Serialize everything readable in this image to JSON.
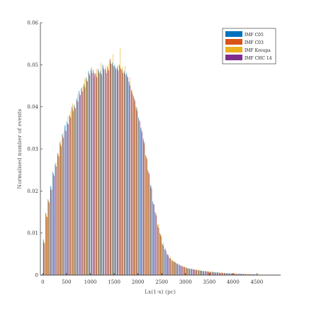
{
  "chart_data": {
    "type": "bar",
    "title": "",
    "xlabel": "Lx(1-x) (pc)",
    "ylabel": "Normalised number of events",
    "xlim": [
      -50,
      5000
    ],
    "ylim": [
      0,
      0.06
    ],
    "x_ticks": [
      0,
      500,
      1000,
      1500,
      2000,
      2500,
      3000,
      3500,
      4000,
      4500
    ],
    "y_ticks": [
      0,
      0.01,
      0.02,
      0.03,
      0.04,
      0.05,
      0.06
    ],
    "x_tick_labels": [
      "0",
      "500",
      "1000",
      "1500",
      "2000",
      "2500",
      "3000",
      "3500",
      "4000",
      "4500"
    ],
    "y_tick_labels": [
      "0",
      "0.01",
      "0.02",
      "0.03",
      "0.04",
      "0.05",
      "0.06"
    ],
    "legend_position": "top-right",
    "bin_width": 50,
    "x": [
      25,
      75,
      125,
      175,
      225,
      275,
      325,
      375,
      425,
      475,
      525,
      575,
      625,
      675,
      725,
      775,
      825,
      875,
      925,
      975,
      1025,
      1075,
      1125,
      1175,
      1225,
      1275,
      1325,
      1375,
      1425,
      1475,
      1525,
      1575,
      1625,
      1675,
      1725,
      1775,
      1825,
      1875,
      1925,
      1975,
      2025,
      2075,
      2125,
      2175,
      2225,
      2275,
      2325,
      2375,
      2425,
      2475,
      2525,
      2575,
      2625,
      2675,
      2725,
      2775,
      2825,
      2875,
      2925,
      2975,
      3025,
      3075,
      3125,
      3175,
      3225,
      3275,
      3325,
      3375,
      3425,
      3475,
      3525,
      3575,
      3625,
      3675,
      3725,
      3775,
      3825,
      3875,
      3925,
      3975,
      4025,
      4075,
      4125,
      4175,
      4225,
      4275,
      4325,
      4375,
      4425,
      4475,
      4525,
      4575,
      4625,
      4675,
      4725,
      4775,
      4825,
      4875,
      4925,
      4975
    ],
    "series": [
      {
        "name": "IMF C05",
        "color": "#0072bd",
        "values": [
          0.0085,
          0.0148,
          0.018,
          0.0212,
          0.0245,
          0.0265,
          0.029,
          0.0315,
          0.0335,
          0.0355,
          0.0365,
          0.038,
          0.04,
          0.0405,
          0.042,
          0.0438,
          0.0445,
          0.0455,
          0.047,
          0.0485,
          0.049,
          0.0488,
          0.048,
          0.049,
          0.0485,
          0.05,
          0.049,
          0.0495,
          0.051,
          0.0505,
          0.05,
          0.0495,
          0.05,
          0.049,
          0.0485,
          0.048,
          0.046,
          0.044,
          0.0425,
          0.04,
          0.0375,
          0.035,
          0.0325,
          0.0285,
          0.025,
          0.0215,
          0.0175,
          0.015,
          0.012,
          0.01,
          0.0075,
          0.0062,
          0.005,
          0.0042,
          0.0035,
          0.0032,
          0.0028,
          0.0025,
          0.0022,
          0.002,
          0.0018,
          0.0016,
          0.0015,
          0.0014,
          0.0013,
          0.0012,
          0.0011,
          0.001,
          0.001,
          0.0009,
          0.0008,
          0.0008,
          0.0007,
          0.0007,
          0.0006,
          0.0006,
          0.0005,
          0.0005,
          0.0005,
          0.0004,
          0.0004,
          0.0004,
          0.0003,
          0.0003,
          0.0003,
          0.0003,
          0.0002,
          0.0002,
          0.0002,
          0.0002,
          0.0002,
          0.0001,
          0.0001,
          0.0001,
          0.0001,
          0.0001,
          0.0001,
          0.0001,
          0.0001,
          0.0001
        ]
      },
      {
        "name": "IMF C03",
        "color": "#d95319",
        "values": [
          0.0078,
          0.014,
          0.0175,
          0.0205,
          0.024,
          0.026,
          0.0285,
          0.031,
          0.033,
          0.0345,
          0.036,
          0.0378,
          0.0395,
          0.04,
          0.0415,
          0.0432,
          0.044,
          0.045,
          0.0465,
          0.048,
          0.0485,
          0.0482,
          0.0475,
          0.0485,
          0.048,
          0.0495,
          0.0485,
          0.049,
          0.0515,
          0.05,
          0.0495,
          0.049,
          0.0495,
          0.0485,
          0.048,
          0.0475,
          0.0455,
          0.0435,
          0.042,
          0.0395,
          0.037,
          0.0345,
          0.032,
          0.028,
          0.0245,
          0.021,
          0.017,
          0.0145,
          0.0115,
          0.0095,
          0.0072,
          0.006,
          0.0048,
          0.004,
          0.0034,
          0.0031,
          0.0027,
          0.0024,
          0.0021,
          0.0019,
          0.0017,
          0.0015,
          0.0014,
          0.0013,
          0.0012,
          0.0011,
          0.001,
          0.0009,
          0.0009,
          0.0008,
          0.0007,
          0.0007,
          0.0006,
          0.0006,
          0.0005,
          0.0005,
          0.0005,
          0.0004,
          0.0004,
          0.0004,
          0.0003,
          0.0003,
          0.0003,
          0.0003,
          0.0002,
          0.0002,
          0.0002,
          0.0002,
          0.0002,
          0.0001,
          0.0001,
          0.0001,
          0.0001,
          0.0001,
          0.0001,
          0.0001,
          0.0001,
          0.0001,
          0.0001,
          0.0001
        ]
      },
      {
        "name": "IMF Kroupa",
        "color": "#edb120",
        "values": [
          0.008,
          0.0145,
          0.0178,
          0.021,
          0.0242,
          0.0268,
          0.0288,
          0.032,
          0.034,
          0.0358,
          0.0378,
          0.039,
          0.0408,
          0.0398,
          0.043,
          0.0425,
          0.0448,
          0.0468,
          0.0462,
          0.0478,
          0.0495,
          0.047,
          0.049,
          0.0482,
          0.0505,
          0.0488,
          0.0498,
          0.0502,
          0.0505,
          0.0525,
          0.049,
          0.05,
          0.054,
          0.0495,
          0.0498,
          0.047,
          0.047,
          0.0438,
          0.041,
          0.04,
          0.0362,
          0.0352,
          0.031,
          0.0282,
          0.0238,
          0.0212,
          0.0168,
          0.0148,
          0.0122,
          0.0098,
          0.0078,
          0.0065,
          0.0052,
          0.0044,
          0.0037,
          0.0033,
          0.0029,
          0.0026,
          0.0023,
          0.0021,
          0.0019,
          0.0017,
          0.0016,
          0.0015,
          0.0014,
          0.0013,
          0.0012,
          0.0011,
          0.001,
          0.001,
          0.0009,
          0.0008,
          0.0008,
          0.0007,
          0.0007,
          0.0006,
          0.0006,
          0.0005,
          0.0005,
          0.0005,
          0.0004,
          0.0004,
          0.0004,
          0.0003,
          0.0003,
          0.0003,
          0.0003,
          0.0002,
          0.0002,
          0.0002,
          0.0002,
          0.0002,
          0.0001,
          0.0001,
          0.0001,
          0.0001,
          0.0001,
          0.0001,
          0.0001,
          0.0001
        ]
      },
      {
        "name": "IMF CHC 14",
        "color": "#7e2f8e",
        "values": [
          0.0075,
          0.0138,
          0.0172,
          0.0202,
          0.0236,
          0.0258,
          0.0282,
          0.0306,
          0.0326,
          0.0342,
          0.0358,
          0.0374,
          0.039,
          0.0396,
          0.0412,
          0.0428,
          0.0436,
          0.0446,
          0.046,
          0.0475,
          0.048,
          0.0478,
          0.047,
          0.048,
          0.0476,
          0.049,
          0.048,
          0.0486,
          0.0502,
          0.0496,
          0.049,
          0.0486,
          0.049,
          0.048,
          0.0476,
          0.047,
          0.045,
          0.043,
          0.0415,
          0.039,
          0.0366,
          0.034,
          0.0316,
          0.0276,
          0.0242,
          0.0206,
          0.0168,
          0.0142,
          0.0112,
          0.0092,
          0.007,
          0.0058,
          0.0047,
          0.0039,
          0.0033,
          0.003,
          0.0026,
          0.0023,
          0.0021,
          0.0018,
          0.0016,
          0.0015,
          0.0014,
          0.0013,
          0.0012,
          0.0011,
          0.001,
          0.0009,
          0.0008,
          0.0008,
          0.0007,
          0.0007,
          0.0006,
          0.0006,
          0.0005,
          0.0005,
          0.0004,
          0.0004,
          0.0004,
          0.0004,
          0.0003,
          0.0003,
          0.0003,
          0.0003,
          0.0002,
          0.0002,
          0.0002,
          0.0002,
          0.0002,
          0.0001,
          0.0001,
          0.0001,
          0.0001,
          0.0001,
          0.0001,
          0.0001,
          0.0001,
          0.0001,
          0.0001,
          0.0001
        ]
      }
    ]
  }
}
